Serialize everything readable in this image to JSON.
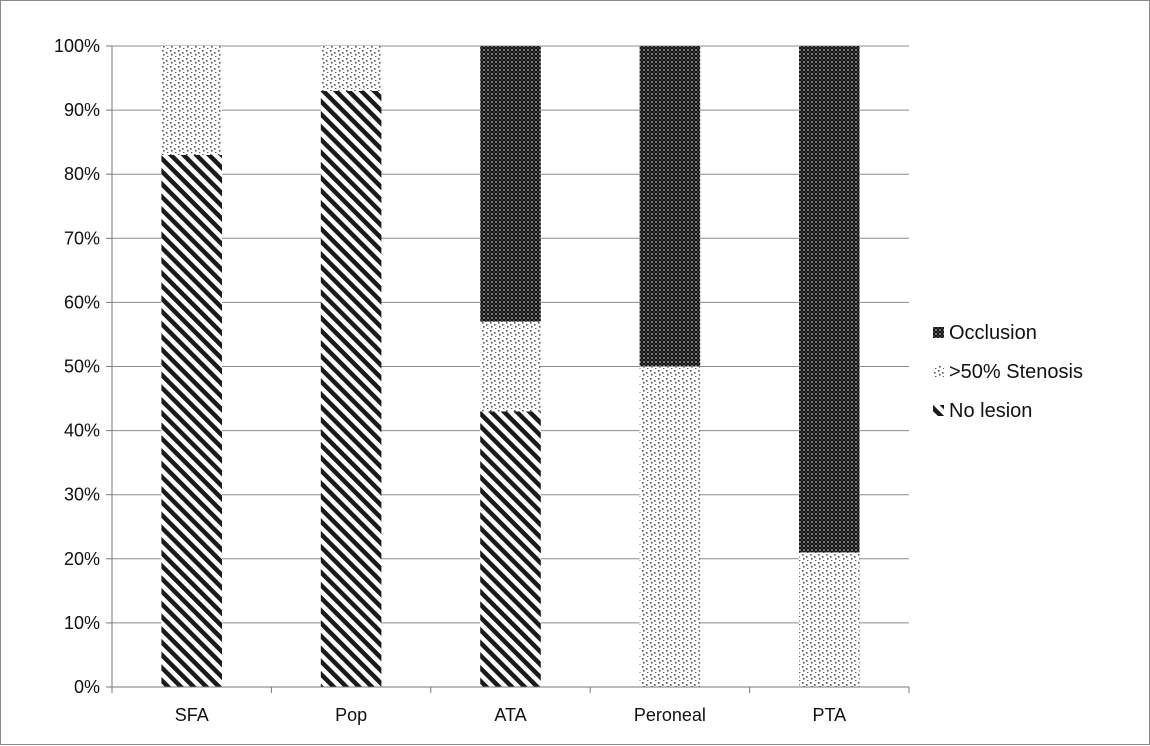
{
  "chart_data": {
    "type": "bar",
    "stacked": true,
    "percent_axis": true,
    "categories": [
      "SFA",
      "Pop",
      "ATA",
      "Peroneal",
      "PTA"
    ],
    "series": [
      {
        "name": "No lesion",
        "values": [
          83,
          93,
          43,
          0,
          0
        ],
        "pattern": "diagonal-stripes"
      },
      {
        "name": ">50% Stenosis",
        "values": [
          17,
          7,
          14,
          50,
          21
        ],
        "pattern": "sparse-dots"
      },
      {
        "name": "Occlusion",
        "values": [
          0,
          0,
          43,
          50,
          79
        ],
        "pattern": "dense-checker"
      }
    ],
    "ylim": [
      0,
      100
    ],
    "y_ticks": [
      "0%",
      "10%",
      "20%",
      "30%",
      "40%",
      "50%",
      "60%",
      "70%",
      "80%",
      "90%",
      "100%"
    ],
    "grid": true,
    "legend_position": "right",
    "legend_order": [
      "Occlusion",
      ">50% Stenosis",
      "No lesion"
    ],
    "colors": {
      "ink": "#1a1a1a",
      "grid": "#8c8c8c",
      "axis": "#777777"
    }
  }
}
